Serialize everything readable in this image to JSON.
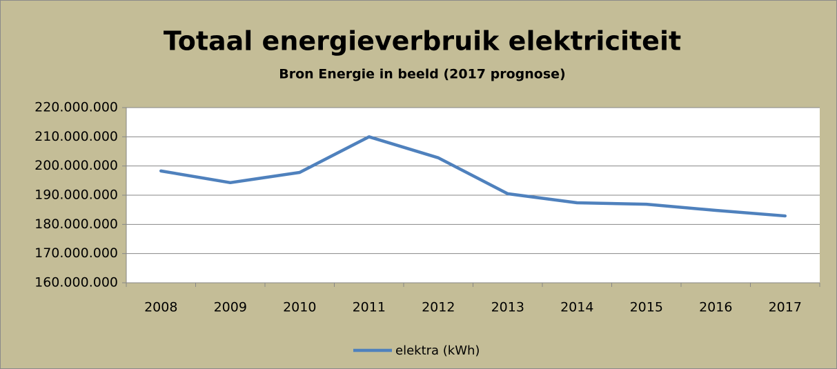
{
  "chart_data": {
    "type": "line",
    "title": "Totaal energieverbruik elektriciteit",
    "subtitle": "Bron Energie in beeld (2017 prognose)",
    "categories": [
      "2008",
      "2009",
      "2010",
      "2011",
      "2012",
      "2013",
      "2014",
      "2015",
      "2016",
      "2017"
    ],
    "series": [
      {
        "name": "elektra (kWh)",
        "color": "#4f81bd",
        "values": [
          198300000,
          194300000,
          197800000,
          210000000,
          202800000,
          190500000,
          187400000,
          186900000,
          184800000,
          182900000
        ]
      }
    ],
    "ylim": [
      160000000,
      220000000
    ],
    "yticks": [
      {
        "value": 160000000,
        "label": "160.000.000"
      },
      {
        "value": 170000000,
        "label": "170.000.000"
      },
      {
        "value": 180000000,
        "label": "180.000.000"
      },
      {
        "value": 190000000,
        "label": "190.000.000"
      },
      {
        "value": 200000000,
        "label": "200.000.000"
      },
      {
        "value": 210000000,
        "label": "210.000.000"
      },
      {
        "value": 220000000,
        "label": "220.000.000"
      }
    ],
    "grid": true,
    "legend": "bottom"
  }
}
